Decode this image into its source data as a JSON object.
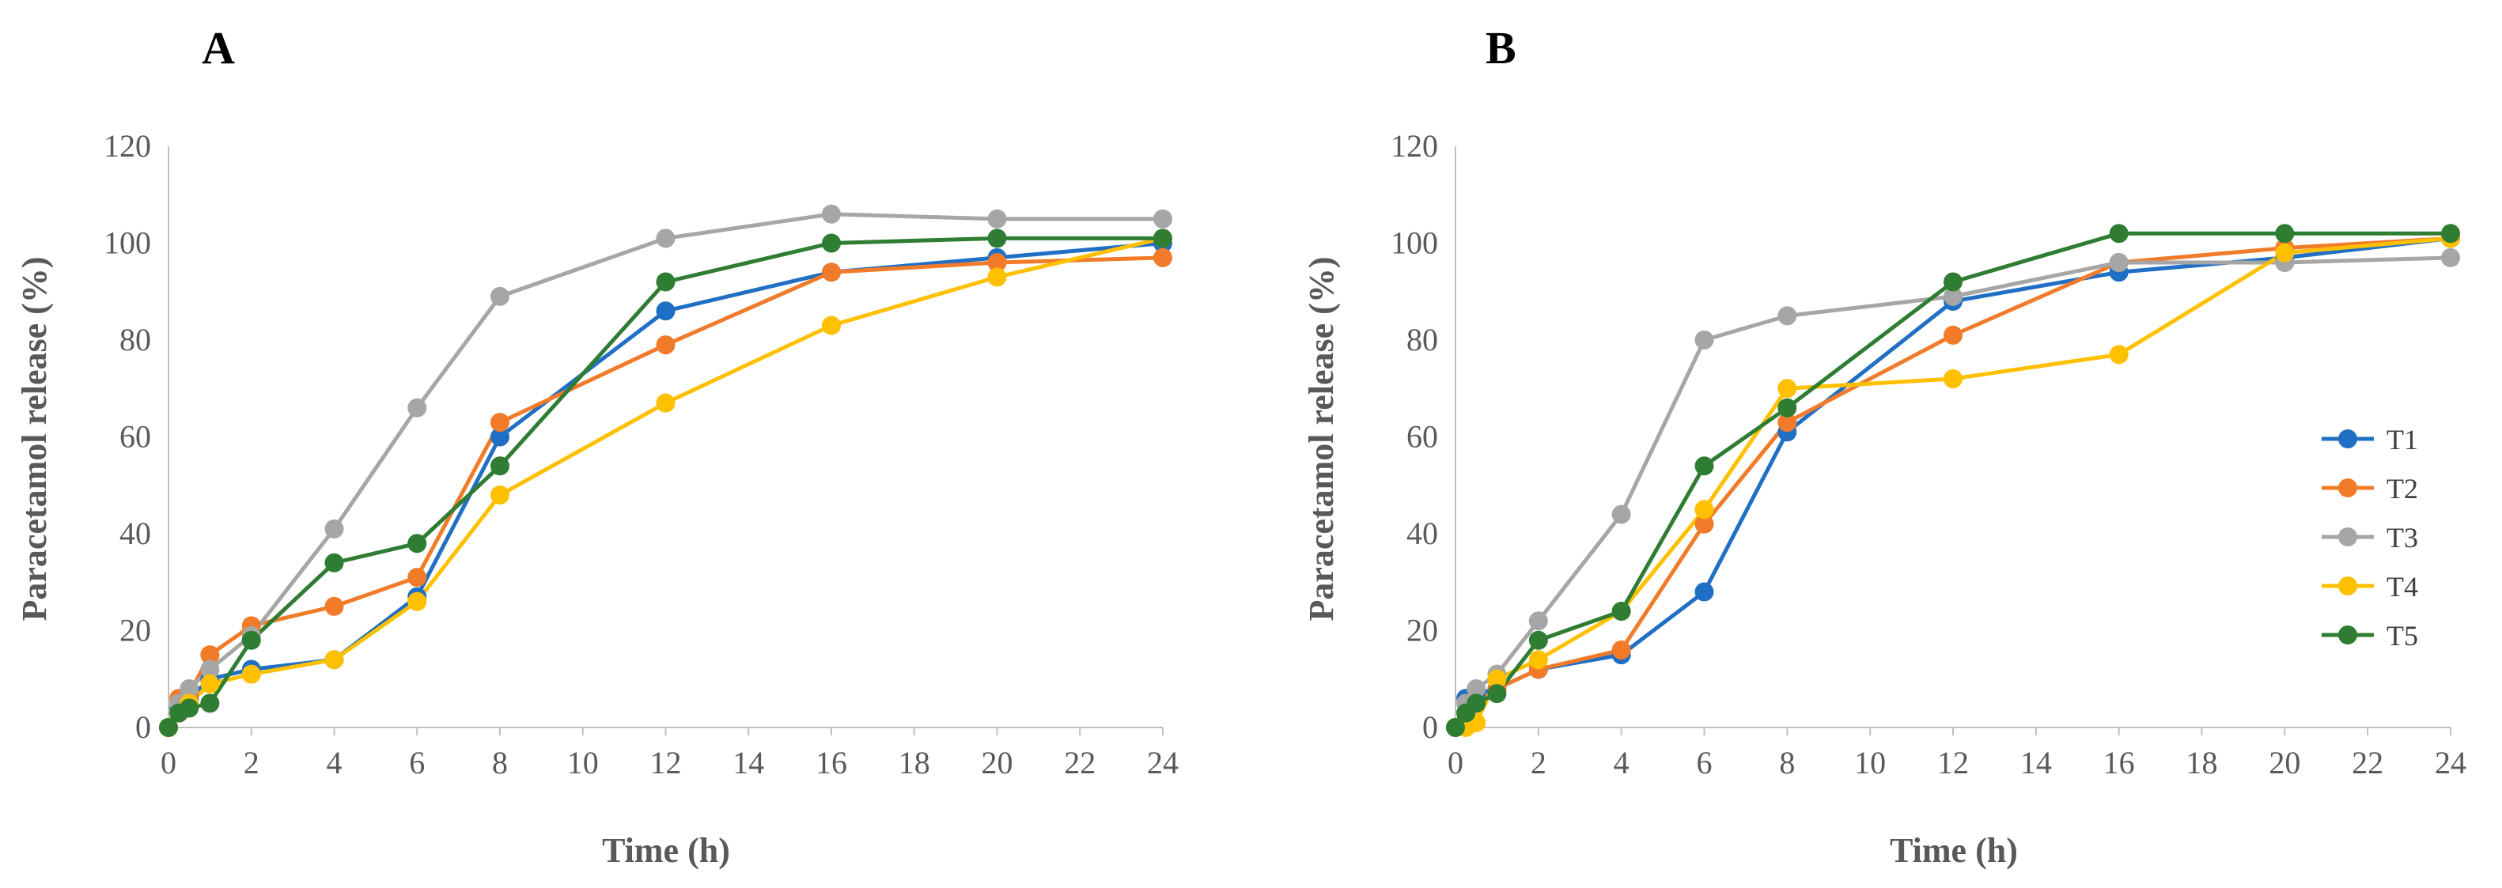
{
  "chart_data": [
    {
      "type": "line",
      "panel_label": "A",
      "xlabel": "Time (h)",
      "ylabel": "Paracetamol release (%)",
      "xlim": [
        0,
        24
      ],
      "ylim": [
        0,
        120
      ],
      "x_ticks": [
        0,
        2,
        4,
        6,
        8,
        10,
        12,
        14,
        16,
        18,
        20,
        22,
        24
      ],
      "y_ticks": [
        0,
        20,
        40,
        60,
        80,
        100,
        120
      ],
      "grid": false,
      "legend": null,
      "x": [
        0,
        0.25,
        0.5,
        1,
        2,
        4,
        6,
        8,
        12,
        16,
        20,
        24
      ],
      "series": [
        {
          "name": "T1",
          "color": "#1F6FC4",
          "values": [
            0,
            4,
            6,
            10,
            12,
            14,
            27,
            60,
            86,
            94,
            97,
            100
          ]
        },
        {
          "name": "T2",
          "color": "#F27B2A",
          "values": [
            0,
            6,
            7,
            15,
            21,
            25,
            31,
            63,
            79,
            94,
            96,
            97
          ]
        },
        {
          "name": "T3",
          "color": "#A6A6A6",
          "values": [
            0,
            5,
            8,
            12,
            19,
            41,
            66,
            89,
            101,
            106,
            105,
            105
          ]
        },
        {
          "name": "T4",
          "color": "#FFC000",
          "values": [
            0,
            3,
            5,
            9,
            11,
            14,
            26,
            48,
            67,
            83,
            93,
            101
          ]
        },
        {
          "name": "T5",
          "color": "#2E7D32",
          "values": [
            0,
            3,
            4,
            5,
            18,
            34,
            38,
            54,
            92,
            100,
            101,
            101
          ]
        }
      ]
    },
    {
      "type": "line",
      "panel_label": "B",
      "xlabel": "Time (h)",
      "ylabel": "Paracetamol release (%)",
      "xlim": [
        0,
        24
      ],
      "ylim": [
        0,
        120
      ],
      "x_ticks": [
        0,
        2,
        4,
        6,
        8,
        10,
        12,
        14,
        16,
        18,
        20,
        22,
        24
      ],
      "y_ticks": [
        0,
        20,
        40,
        60,
        80,
        100,
        120
      ],
      "grid": false,
      "legend": "right",
      "x": [
        0,
        0.25,
        0.5,
        1,
        2,
        4,
        6,
        8,
        12,
        16,
        20,
        24
      ],
      "series": [
        {
          "name": "T1",
          "color": "#1F6FC4",
          "values": [
            0,
            6,
            7,
            8,
            12,
            15,
            28,
            61,
            88,
            94,
            97,
            101
          ]
        },
        {
          "name": "T2",
          "color": "#F27B2A",
          "values": [
            0,
            3,
            5,
            8,
            12,
            16,
            42,
            63,
            81,
            96,
            99,
            101
          ]
        },
        {
          "name": "T3",
          "color": "#A6A6A6",
          "values": [
            0,
            5,
            8,
            11,
            22,
            44,
            80,
            85,
            89,
            96,
            96,
            97
          ]
        },
        {
          "name": "T4",
          "color": "#FFC000",
          "values": [
            0,
            0,
            1,
            10,
            14,
            24,
            45,
            70,
            72,
            77,
            98,
            101
          ]
        },
        {
          "name": "T5",
          "color": "#2E7D32",
          "values": [
            0,
            3,
            5,
            7,
            18,
            24,
            54,
            66,
            92,
            102,
            102,
            102
          ]
        }
      ]
    }
  ]
}
